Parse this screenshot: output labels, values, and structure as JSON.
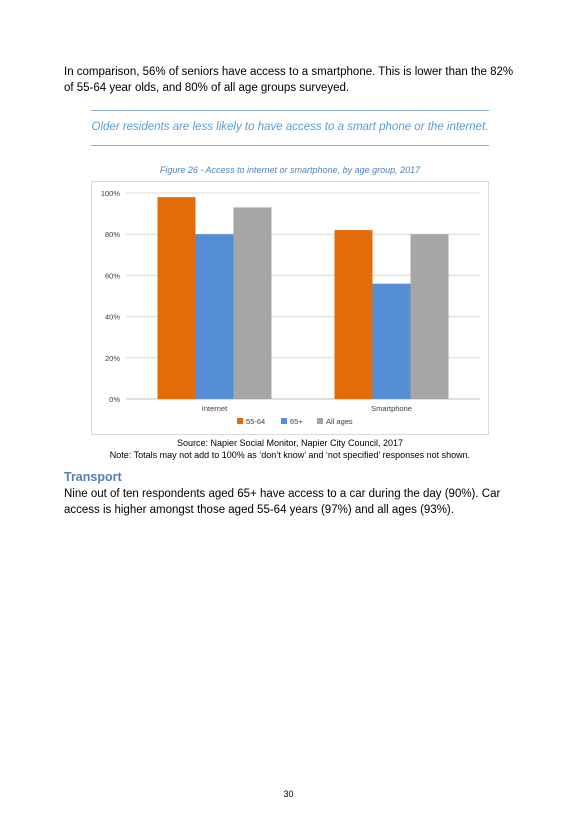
{
  "intro_paragraph": "In comparison, 56% of seniors have access to a smartphone. This is lower than the 82% of 55-64 year olds, and 80% of all age groups surveyed.",
  "callout": "Older residents are less likely to have access to a smart phone or the internet.",
  "figure_caption": "Figure 26 - Access to internet or smartphone, by age group, 2017",
  "source": "Source: Napier Social Monitor, Napier City Council, 2017",
  "note": "Note: Totals may not add to 100% as ‘don’t know’ and ‘not specified’ responses not shown.",
  "transport": {
    "heading": "Transport",
    "paragraph": "Nine out of ten respondents aged 65+ have access to a car during the day (90%). Car access is higher amongst those aged 55-64 years (97%) and all ages (93%)."
  },
  "page_number": "30",
  "chart_data": {
    "type": "bar",
    "categories": [
      "Internet",
      "Smartphone"
    ],
    "series": [
      {
        "name": "55-64",
        "values": [
          98,
          82
        ],
        "color": "#e36c09"
      },
      {
        "name": "65+",
        "values": [
          80,
          56
        ],
        "color": "#558ed5"
      },
      {
        "name": "All ages",
        "values": [
          93,
          80
        ],
        "color": "#a6a6a6"
      }
    ],
    "ylim": [
      0,
      100
    ],
    "yticks": [
      "0%",
      "20%",
      "40%",
      "60%",
      "80%",
      "100%"
    ],
    "grid": true,
    "legend": "bottom"
  }
}
